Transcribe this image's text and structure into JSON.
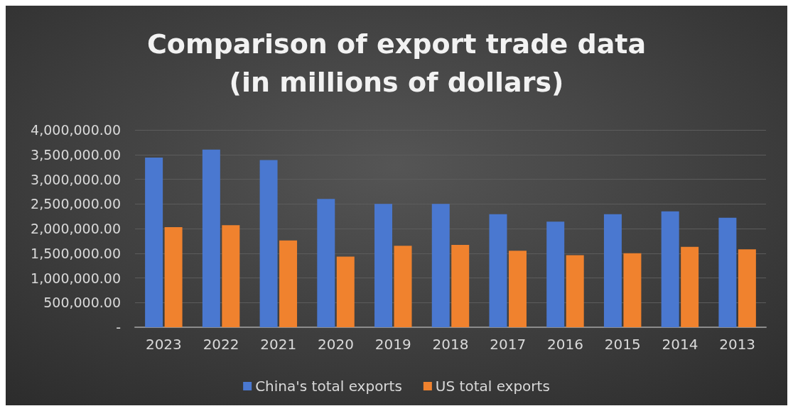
{
  "chart_data": {
    "type": "bar",
    "title": "Comparison of export trade data\n(in millions of dollars)",
    "categories": [
      "2023",
      "2022",
      "2021",
      "2020",
      "2019",
      "2018",
      "2017",
      "2016",
      "2015",
      "2014",
      "2013"
    ],
    "series": [
      {
        "name": "China's total exports",
        "color": "#4a78d0",
        "values": [
          3440000,
          3600000,
          3390000,
          2600000,
          2500000,
          2500000,
          2290000,
          2140000,
          2290000,
          2350000,
          2220000
        ]
      },
      {
        "name": "US total exports",
        "color": "#f0822e",
        "values": [
          2030000,
          2070000,
          1760000,
          1430000,
          1650000,
          1670000,
          1550000,
          1460000,
          1500000,
          1630000,
          1580000
        ]
      }
    ],
    "ylim": [
      0,
      4000000
    ],
    "yticks": [
      {
        "value": 0,
        "label": "-"
      },
      {
        "value": 500000,
        "label": "500,000.00"
      },
      {
        "value": 1000000,
        "label": "1,000,000.00"
      },
      {
        "value": 1500000,
        "label": "1,500,000.00"
      },
      {
        "value": 2000000,
        "label": "2,000,000.00"
      },
      {
        "value": 2500000,
        "label": "2,500,000.00"
      },
      {
        "value": 3000000,
        "label": "3,000,000.00"
      },
      {
        "value": 3500000,
        "label": "3,500,000.00"
      },
      {
        "value": 4000000,
        "label": "4,000,000.00"
      }
    ],
    "grid": "y",
    "legend": "bottom"
  }
}
